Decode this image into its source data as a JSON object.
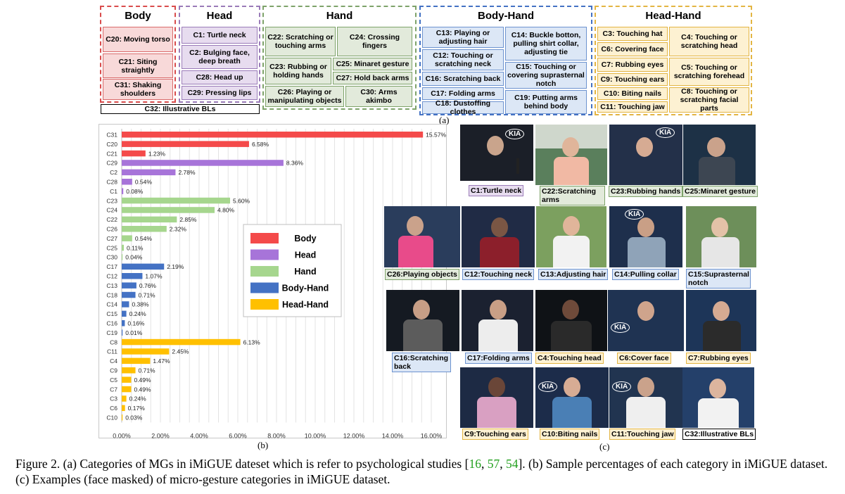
{
  "taxonomy": {
    "body": {
      "title": "Body",
      "items": [
        "C20: Moving torso",
        "C21: Siting straightly",
        "C31: Shaking shoulders"
      ]
    },
    "head": {
      "title": "Head",
      "items": [
        "C1: Turtle neck",
        "C2: Bulging face, deep breath",
        "C28: Head up",
        "C29: Pressing lips"
      ]
    },
    "hand": {
      "title": "Hand",
      "items": [
        "C22: Scratching or touching arms",
        "C24: Crossing fingers",
        "C23: Rubbing or holding hands",
        "C25: Minaret gesture",
        "C27: Hold back arms",
        "C26: Playing or manipulating objects",
        "C30: Arms akimbo"
      ]
    },
    "body_hand": {
      "title": "Body-Hand",
      "items": [
        "C13: Playing or adjusting hair",
        "C14: Buckle botton, pulling shirt collar, adjusting tie",
        "C12: Touching or scratching neck",
        "C16: Scratching back",
        "C15: Touching or covering suprasternal notch",
        "C17: Folding arms",
        "C18: Dustoffing clothes",
        "C19: Putting arms behind body"
      ]
    },
    "head_hand": {
      "title": "Head-Hand",
      "items": [
        "C3: Touching hat",
        "C4: Touching or scratching head",
        "C6: Covering face",
        "C7: Rubbing eyes",
        "C5: Touching or scratching forehead",
        "C9: Touching ears",
        "C10: Biting nails",
        "C8: Touching or scratching facial parts",
        "C11: Touching jaw"
      ]
    },
    "illustrative": "C32: Illustrative BLs",
    "panel_label": "(a)"
  },
  "chart_data": {
    "type": "bar",
    "orientation": "horizontal",
    "categories": [
      "C31",
      "C20",
      "C21",
      "C29",
      "C2",
      "C28",
      "C1",
      "C23",
      "C24",
      "C22",
      "C26",
      "C27",
      "C25",
      "C30",
      "C17",
      "C12",
      "C13",
      "C18",
      "C14",
      "C15",
      "C16",
      "C19",
      "C8",
      "C11",
      "C4",
      "C9",
      "C5",
      "C7",
      "C3",
      "C6",
      "C10"
    ],
    "values": [
      15.57,
      6.58,
      1.23,
      8.36,
      2.78,
      0.54,
      0.08,
      5.6,
      4.8,
      2.85,
      2.32,
      0.54,
      0.11,
      0.04,
      2.19,
      1.07,
      0.76,
      0.71,
      0.38,
      0.24,
      0.16,
      0.01,
      6.13,
      2.45,
      1.47,
      0.71,
      0.49,
      0.49,
      0.24,
      0.17,
      0.03
    ],
    "value_labels": [
      "15.57%",
      "6.58%",
      "1.23%",
      "8.36%",
      "2.78%",
      "0.54%",
      "0.08%",
      "5.60%",
      "4.80%",
      "2.85%",
      "2.32%",
      "0.54%",
      "0.11%",
      "0.04%",
      "2.19%",
      "1.07%",
      "0.76%",
      "0.71%",
      "0.38%",
      "0.24%",
      "0.16%",
      "0.01%",
      "6.13%",
      "2.45%",
      "1.47%",
      "0.71%",
      "0.49%",
      "0.49%",
      "0.24%",
      "0.17%",
      "0.03%"
    ],
    "groups": [
      "Body",
      "Body",
      "Body",
      "Head",
      "Head",
      "Head",
      "Head",
      "Hand",
      "Hand",
      "Hand",
      "Hand",
      "Hand",
      "Hand",
      "Hand",
      "Body-Hand",
      "Body-Hand",
      "Body-Hand",
      "Body-Hand",
      "Body-Hand",
      "Body-Hand",
      "Body-Hand",
      "Body-Hand",
      "Head-Hand",
      "Head-Hand",
      "Head-Hand",
      "Head-Hand",
      "Head-Hand",
      "Head-Hand",
      "Head-Hand",
      "Head-Hand",
      "Head-Hand"
    ],
    "legend": [
      {
        "name": "Body",
        "color": "#f44a4a"
      },
      {
        "name": "Head",
        "color": "#a774d9"
      },
      {
        "name": "Hand",
        "color": "#a6d68e"
      },
      {
        "name": "Body-Hand",
        "color": "#4472c4"
      },
      {
        "name": "Head-Hand",
        "color": "#ffc000"
      }
    ],
    "xticks": [
      "0.00%",
      "2.00%",
      "4.00%",
      "6.00%",
      "8.00%",
      "10.00%",
      "12.00%",
      "14.00%",
      "16.00%"
    ],
    "xlim": [
      0,
      16
    ],
    "grid": true,
    "legend_position": "center-right",
    "panel_label": "(b)"
  },
  "examples": {
    "captions": [
      "C1:Turtle neck",
      "C22:Scratching arms",
      "C23:Rubbing hands",
      "C25:Minaret gesture",
      "C26:Playing objects",
      "C12:Touching neck",
      "C13:Adjusting hair",
      "C14:Pulling collar",
      "C15:Suprasternal notch",
      "C16:Scratching back",
      "C17:Folding arms",
      "C4:Touching head",
      "C6:Cover face",
      "C7:Rubbing eyes",
      "C9:Touching ears",
      "C10:Biting nails",
      "C11:Touching jaw",
      "C32:Illustrative BLs"
    ],
    "logo_text": "KIA",
    "panel_label": "(c)"
  },
  "caption": {
    "prefix": "Figure 2. (a) Categories of MGs in iMiGUE dateset which is refer to psychological studies [",
    "ref1": "16",
    "sep1": ", ",
    "ref2": "57",
    "sep2": ", ",
    "ref3": "54",
    "suffix": "]. (b) Sample percentages of each category in iMiGUE dataset. (c) Examples (face masked) of micro-gesture categories in iMiGUE dataset."
  },
  "colors": {
    "body": "#f44a4a",
    "head": "#a774d9",
    "hand": "#a6d68e",
    "body_hand": "#4472c4",
    "head_hand": "#ffc000"
  }
}
